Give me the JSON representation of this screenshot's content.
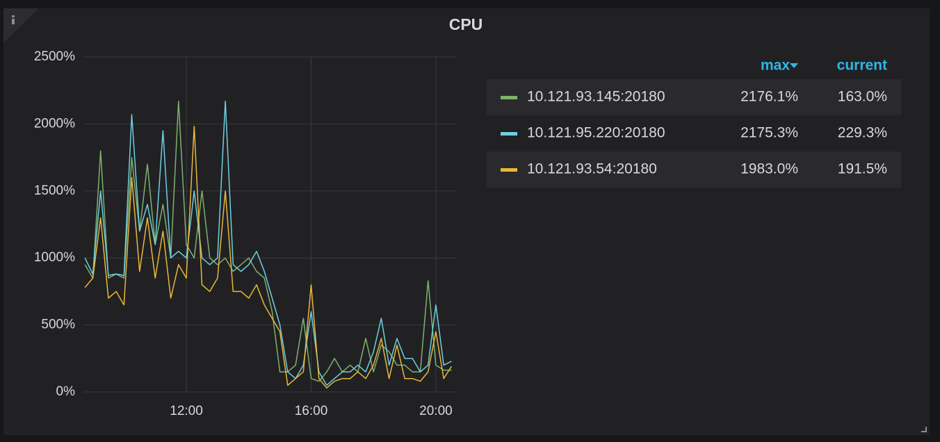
{
  "chart_data": {
    "type": "line",
    "title": "CPU",
    "x": [
      8.75,
      9.0,
      9.25,
      9.5,
      9.75,
      10.0,
      10.25,
      10.5,
      10.75,
      11.0,
      11.25,
      11.5,
      11.75,
      12.0,
      12.25,
      12.5,
      12.75,
      13.0,
      13.25,
      13.5,
      13.75,
      14.0,
      14.25,
      14.5,
      14.75,
      15.0,
      15.25,
      15.5,
      15.75,
      16.0,
      16.25,
      16.5,
      16.75,
      17.0,
      17.25,
      17.5,
      17.75,
      18.0,
      18.25,
      18.5,
      18.75,
      19.0,
      19.25,
      19.5,
      19.75,
      20.0,
      20.25,
      20.5
    ],
    "xlim": [
      8.7,
      20.67
    ],
    "xticks": [
      {
        "value": 12,
        "label": "12:00"
      },
      {
        "value": 16,
        "label": "16:00"
      },
      {
        "value": 20,
        "label": "20:00"
      }
    ],
    "ylim": [
      0,
      2500
    ],
    "yticks": [
      {
        "value": 0,
        "label": "0%"
      },
      {
        "value": 500,
        "label": "500%"
      },
      {
        "value": 1000,
        "label": "1000%"
      },
      {
        "value": 1500,
        "label": "1500%"
      },
      {
        "value": 2000,
        "label": "2000%"
      },
      {
        "value": 2500,
        "label": "2500%"
      }
    ],
    "grid": true,
    "legend_columns": [
      "max",
      "current"
    ],
    "series": [
      {
        "name": "10.121.93.145:20180",
        "color": "#7eb26d",
        "max": "2176.1%",
        "current": "163.0%",
        "values": [
          950,
          850,
          1800,
          850,
          880,
          850,
          1750,
          1200,
          1700,
          1100,
          1400,
          1000,
          2170,
          1100,
          1000,
          1500,
          1000,
          950,
          1000,
          900,
          950,
          1000,
          900,
          850,
          600,
          150,
          150,
          200,
          550,
          100,
          80,
          150,
          250,
          150,
          200,
          150,
          400,
          150,
          350,
          300,
          200,
          200,
          150,
          150,
          830,
          200,
          163,
          163
        ]
      },
      {
        "name": "10.121.95.220:20180",
        "color": "#6ed0e0",
        "max": "2175.3%",
        "current": "229.3%",
        "values": [
          1000,
          880,
          1500,
          870,
          880,
          870,
          2070,
          1200,
          1400,
          1100,
          1950,
          1000,
          1050,
          1000,
          1500,
          1000,
          950,
          1000,
          2170,
          950,
          900,
          950,
          1050,
          900,
          700,
          500,
          150,
          100,
          200,
          600,
          150,
          50,
          100,
          150,
          150,
          200,
          150,
          300,
          550,
          200,
          400,
          250,
          250,
          150,
          200,
          650,
          200,
          229.3
        ]
      },
      {
        "name": "10.121.93.54:20180",
        "color": "#eab839",
        "max": "1983.0%",
        "current": "191.5%",
        "values": [
          780,
          850,
          1300,
          700,
          750,
          650,
          1600,
          900,
          1300,
          850,
          1200,
          700,
          950,
          850,
          1983,
          800,
          750,
          850,
          1500,
          750,
          750,
          700,
          800,
          650,
          550,
          450,
          50,
          100,
          150,
          800,
          100,
          30,
          80,
          100,
          100,
          150,
          100,
          200,
          400,
          100,
          350,
          100,
          100,
          80,
          150,
          450,
          100,
          191.5
        ]
      }
    ]
  }
}
